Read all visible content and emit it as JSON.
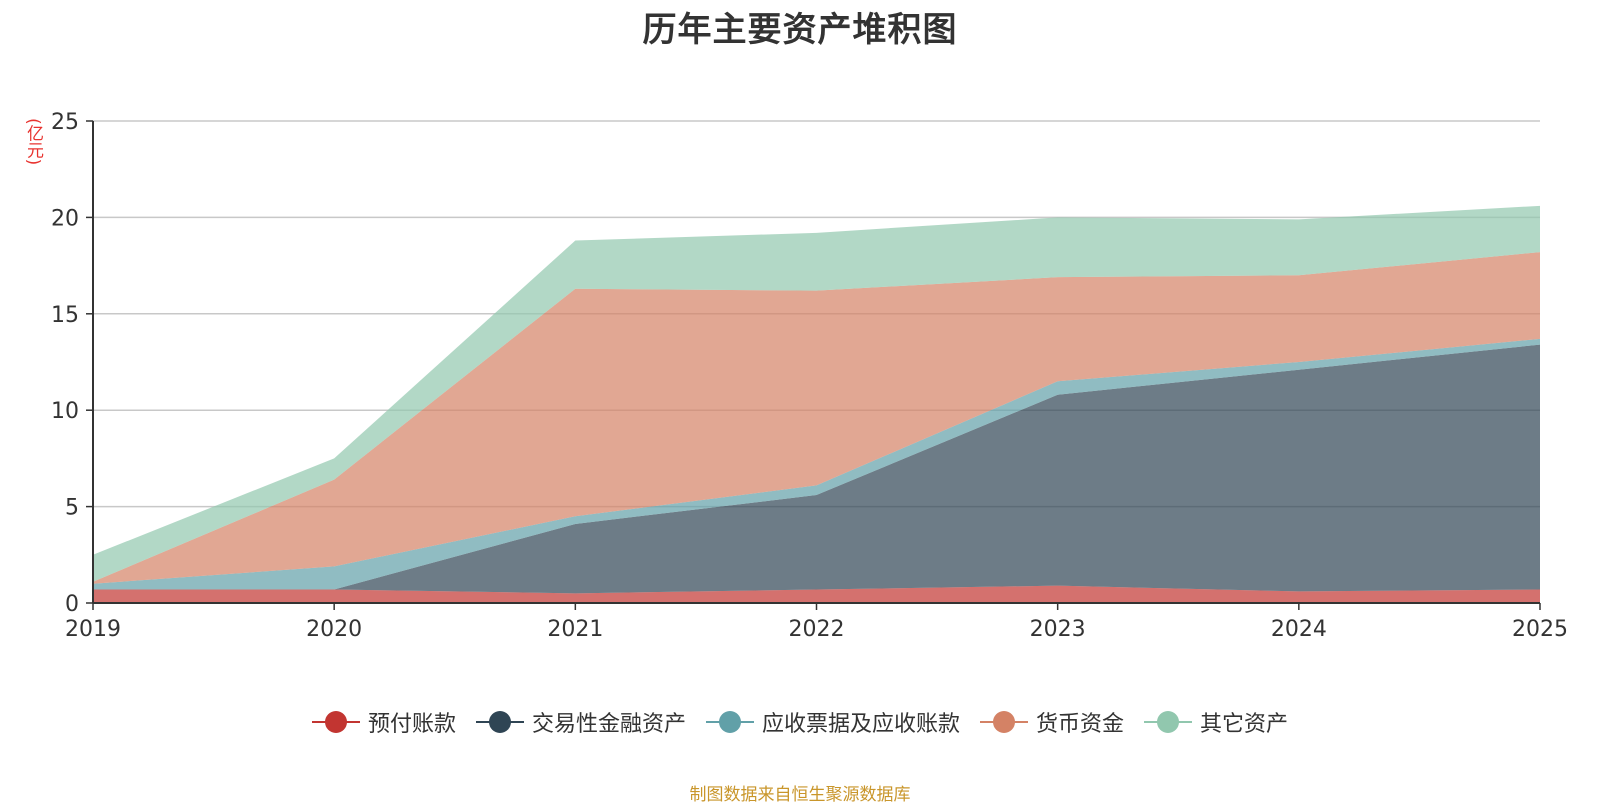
{
  "chart_data": {
    "type": "area",
    "stacked": true,
    "title": "历年主要资产堆积图",
    "unit": "(亿元)",
    "x": [
      "2019",
      "2020",
      "2021",
      "2022",
      "2023",
      "2024",
      "2025"
    ],
    "ylim": [
      0,
      25
    ],
    "yticks": [
      0,
      5,
      10,
      15,
      20,
      25
    ],
    "grid": true,
    "legend_position": "bottom",
    "series": [
      {
        "name": "预付账款",
        "color": "#c23531",
        "values": [
          0.7,
          0.7,
          0.5,
          0.7,
          0.9,
          0.6,
          0.7
        ]
      },
      {
        "name": "交易性金融资产",
        "color": "#2f4554",
        "values": [
          0.0,
          0.0,
          3.6,
          4.9,
          9.9,
          11.5,
          12.7
        ]
      },
      {
        "name": "应收票据及应收账款",
        "color": "#61a0a8",
        "values": [
          0.3,
          1.2,
          0.4,
          0.5,
          0.7,
          0.4,
          0.3
        ]
      },
      {
        "name": "货币资金",
        "color": "#d48265",
        "values": [
          0.1,
          4.5,
          11.8,
          10.1,
          5.4,
          4.5,
          4.5
        ]
      },
      {
        "name": "其它资产",
        "color": "#91c7ae",
        "values": [
          1.4,
          1.1,
          2.5,
          3.0,
          3.1,
          2.9,
          2.4
        ]
      }
    ]
  },
  "source": "制图数据来自恒生聚源数据库"
}
